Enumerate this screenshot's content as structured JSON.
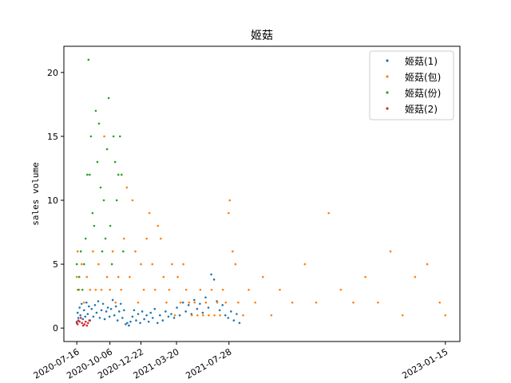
{
  "chart_data": {
    "type": "scatter",
    "title": "姬菇",
    "xlabel": "",
    "ylabel": "sales volume",
    "x_axis_kind": "date",
    "xlim": [
      "2020-06-14",
      "2023-02-20"
    ],
    "ylim": [
      -1.05,
      22.05
    ],
    "x_ticks": [
      "2020-07-16",
      "2020-10-06",
      "2020-12-22",
      "2021-03-20",
      "2021-07-28",
      "2023-01-15"
    ],
    "y_ticks": [
      0,
      5,
      10,
      15,
      20
    ],
    "grid": false,
    "legend_position": "top-right",
    "series": [
      {
        "name": "姬菇(1)",
        "color": "#1f77b4",
        "points": [
          [
            "2020-07-16",
            0.5
          ],
          [
            "2020-07-18",
            1.2
          ],
          [
            "2020-07-20",
            0.8
          ],
          [
            "2020-07-23",
            1.6
          ],
          [
            "2020-07-25",
            1.0
          ],
          [
            "2020-07-28",
            1.9
          ],
          [
            "2020-07-31",
            0.7
          ],
          [
            "2020-08-03",
            1.4
          ],
          [
            "2020-08-06",
            0.9
          ],
          [
            "2020-08-09",
            2.0
          ],
          [
            "2020-08-12",
            1.1
          ],
          [
            "2020-08-15",
            1.7
          ],
          [
            "2020-08-18",
            0.6
          ],
          [
            "2020-08-22",
            1.5
          ],
          [
            "2020-08-26",
            0.9
          ],
          [
            "2020-08-30",
            1.8
          ],
          [
            "2020-09-03",
            1.2
          ],
          [
            "2020-09-07",
            2.1
          ],
          [
            "2020-09-11",
            0.8
          ],
          [
            "2020-09-15",
            1.4
          ],
          [
            "2020-09-19",
            1.9
          ],
          [
            "2020-09-23",
            0.7
          ],
          [
            "2020-09-27",
            1.3
          ],
          [
            "2020-10-01",
            1.6
          ],
          [
            "2020-10-05",
            0.9
          ],
          [
            "2020-10-09",
            1.5
          ],
          [
            "2020-10-13",
            2.2
          ],
          [
            "2020-10-17",
            1.0
          ],
          [
            "2020-10-21",
            1.7
          ],
          [
            "2020-10-25",
            0.6
          ],
          [
            "2020-10-29",
            1.3
          ],
          [
            "2020-11-02",
            1.9
          ],
          [
            "2020-11-06",
            0.8
          ],
          [
            "2020-11-10",
            1.4
          ],
          [
            "2020-11-14",
            0.3
          ],
          [
            "2020-11-18",
            0.4
          ],
          [
            "2020-11-22",
            0.2
          ],
          [
            "2020-11-26",
            0.5
          ],
          [
            "2020-12-01",
            0.9
          ],
          [
            "2020-12-05",
            1.4
          ],
          [
            "2020-12-10",
            0.6
          ],
          [
            "2020-12-15",
            1.1
          ],
          [
            "2020-12-20",
            0.4
          ],
          [
            "2020-12-25",
            1.3
          ],
          [
            "2020-12-30",
            0.7
          ],
          [
            "2021-01-05",
            1.0
          ],
          [
            "2021-01-10",
            0.5
          ],
          [
            "2021-01-15",
            1.2
          ],
          [
            "2021-01-20",
            0.8
          ],
          [
            "2021-01-25",
            1.5
          ],
          [
            "2021-02-01",
            0.4
          ],
          [
            "2021-02-07",
            1.0
          ],
          [
            "2021-02-14",
            0.6
          ],
          [
            "2021-02-21",
            1.3
          ],
          [
            "2021-02-28",
            0.9
          ],
          [
            "2021-03-07",
            1.1
          ],
          [
            "2021-03-14",
            0.8
          ],
          [
            "2021-03-21",
            1.6
          ],
          [
            "2021-03-28",
            1.0
          ],
          [
            "2021-04-05",
            2.0
          ],
          [
            "2021-04-12",
            1.3
          ],
          [
            "2021-04-19",
            1.8
          ],
          [
            "2021-04-26",
            1.1
          ],
          [
            "2021-05-03",
            2.2
          ],
          [
            "2021-05-10",
            1.5
          ],
          [
            "2021-05-17",
            1.9
          ],
          [
            "2021-05-24",
            1.2
          ],
          [
            "2021-05-31",
            2.4
          ],
          [
            "2021-06-07",
            1.6
          ],
          [
            "2021-06-14",
            4.2
          ],
          [
            "2021-06-21",
            3.8
          ],
          [
            "2021-06-28",
            2.1
          ],
          [
            "2021-07-05",
            1.4
          ],
          [
            "2021-07-12",
            1.8
          ],
          [
            "2021-07-19",
            1.0
          ],
          [
            "2021-07-26",
            0.8
          ],
          [
            "2021-08-02",
            1.3
          ],
          [
            "2021-08-09",
            0.6
          ],
          [
            "2021-08-16",
            1.1
          ],
          [
            "2021-08-23",
            0.4
          ]
        ]
      },
      {
        "name": "姬菇(包)",
        "color": "#ff7f0e",
        "points": [
          [
            "2020-07-16",
            4
          ],
          [
            "2020-07-18",
            6
          ],
          [
            "2020-07-22",
            3
          ],
          [
            "2020-07-28",
            5
          ],
          [
            "2020-08-03",
            2
          ],
          [
            "2020-08-10",
            4
          ],
          [
            "2020-08-18",
            3
          ],
          [
            "2020-08-25",
            6
          ],
          [
            "2020-09-01",
            3
          ],
          [
            "2020-09-08",
            5
          ],
          [
            "2020-09-15",
            3
          ],
          [
            "2020-09-22",
            15
          ],
          [
            "2020-09-29",
            4
          ],
          [
            "2020-10-06",
            3
          ],
          [
            "2020-10-13",
            6
          ],
          [
            "2020-10-20",
            2
          ],
          [
            "2020-10-27",
            4
          ],
          [
            "2020-11-03",
            3
          ],
          [
            "2020-11-10",
            7
          ],
          [
            "2020-11-17",
            11
          ],
          [
            "2020-11-24",
            4
          ],
          [
            "2020-12-01",
            10
          ],
          [
            "2020-12-08",
            6
          ],
          [
            "2020-12-15",
            2
          ],
          [
            "2020-12-22",
            5
          ],
          [
            "2020-12-29",
            3
          ],
          [
            "2021-01-05",
            7
          ],
          [
            "2021-01-12",
            9
          ],
          [
            "2021-01-19",
            5
          ],
          [
            "2021-01-26",
            3
          ],
          [
            "2021-02-02",
            8
          ],
          [
            "2021-02-09",
            7
          ],
          [
            "2021-02-16",
            4
          ],
          [
            "2021-02-23",
            2
          ],
          [
            "2021-03-02",
            3
          ],
          [
            "2021-03-09",
            5
          ],
          [
            "2021-03-16",
            1
          ],
          [
            "2021-03-23",
            4
          ],
          [
            "2021-03-30",
            2
          ],
          [
            "2021-04-06",
            5
          ],
          [
            "2021-04-13",
            3
          ],
          [
            "2021-04-20",
            2
          ],
          [
            "2021-04-27",
            1
          ],
          [
            "2021-05-04",
            2
          ],
          [
            "2021-05-11",
            1
          ],
          [
            "2021-05-18",
            3
          ],
          [
            "2021-05-25",
            1
          ],
          [
            "2021-06-01",
            2
          ],
          [
            "2021-06-08",
            1
          ],
          [
            "2021-06-15",
            3
          ],
          [
            "2021-06-22",
            1
          ],
          [
            "2021-06-29",
            2
          ],
          [
            "2021-07-06",
            1
          ],
          [
            "2021-07-13",
            3
          ],
          [
            "2021-07-20",
            2
          ],
          [
            "2021-07-27",
            9
          ],
          [
            "2021-07-30",
            10
          ],
          [
            "2021-08-06",
            6
          ],
          [
            "2021-08-13",
            5
          ],
          [
            "2021-08-20",
            2
          ],
          [
            "2021-09-01",
            1
          ],
          [
            "2021-09-15",
            3
          ],
          [
            "2021-10-01",
            2
          ],
          [
            "2021-10-20",
            4
          ],
          [
            "2021-11-10",
            1
          ],
          [
            "2021-12-01",
            3
          ],
          [
            "2022-01-01",
            2
          ],
          [
            "2022-02-01",
            5
          ],
          [
            "2022-03-01",
            2
          ],
          [
            "2022-04-01",
            9
          ],
          [
            "2022-05-01",
            3
          ],
          [
            "2022-06-01",
            2
          ],
          [
            "2022-07-01",
            4
          ],
          [
            "2022-08-01",
            2
          ],
          [
            "2022-09-01",
            6
          ],
          [
            "2022-10-01",
            1
          ],
          [
            "2022-11-01",
            4
          ],
          [
            "2022-12-01",
            5
          ],
          [
            "2023-01-01",
            2
          ],
          [
            "2023-01-15",
            1
          ]
        ]
      },
      {
        "name": "姬菇(份)",
        "color": "#2ca02c",
        "points": [
          [
            "2020-07-16",
            5
          ],
          [
            "2020-07-19",
            3
          ],
          [
            "2020-07-22",
            4
          ],
          [
            "2020-07-26",
            6
          ],
          [
            "2020-07-30",
            3
          ],
          [
            "2020-08-03",
            5
          ],
          [
            "2020-08-07",
            7
          ],
          [
            "2020-08-11",
            12
          ],
          [
            "2020-08-14",
            21
          ],
          [
            "2020-08-17",
            12
          ],
          [
            "2020-08-20",
            15
          ],
          [
            "2020-08-24",
            9
          ],
          [
            "2020-08-28",
            8
          ],
          [
            "2020-09-01",
            17
          ],
          [
            "2020-09-05",
            13
          ],
          [
            "2020-09-09",
            16
          ],
          [
            "2020-09-13",
            11
          ],
          [
            "2020-09-17",
            6
          ],
          [
            "2020-09-21",
            10
          ],
          [
            "2020-09-25",
            7
          ],
          [
            "2020-09-29",
            14
          ],
          [
            "2020-10-03",
            18
          ],
          [
            "2020-10-07",
            8
          ],
          [
            "2020-10-11",
            5
          ],
          [
            "2020-10-15",
            15
          ],
          [
            "2020-10-19",
            13
          ],
          [
            "2020-10-23",
            10
          ],
          [
            "2020-10-27",
            12
          ],
          [
            "2020-10-31",
            15
          ],
          [
            "2020-11-04",
            12
          ],
          [
            "2020-11-08",
            6
          ]
        ]
      },
      {
        "name": "姬菇(2)",
        "color": "#d62728",
        "points": [
          [
            "2020-07-16",
            0.4
          ],
          [
            "2020-07-18",
            0.3
          ],
          [
            "2020-07-20",
            0.6
          ],
          [
            "2020-07-23",
            0.5
          ],
          [
            "2020-07-26",
            0.8
          ],
          [
            "2020-07-29",
            0.4
          ],
          [
            "2020-08-01",
            0.2
          ],
          [
            "2020-08-04",
            0.3
          ],
          [
            "2020-08-07",
            0.5
          ],
          [
            "2020-08-10",
            0.2
          ],
          [
            "2020-08-13",
            0.4
          ],
          [
            "2020-08-16",
            0.6
          ]
        ]
      }
    ]
  }
}
